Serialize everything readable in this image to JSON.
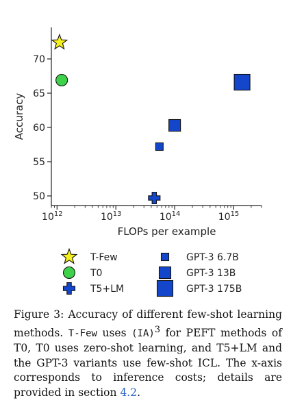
{
  "chart_data": {
    "type": "scatter",
    "title": "",
    "xlabel": "FLOPs per example",
    "ylabel": "Accuracy",
    "xscale": "log",
    "xlim": [
      800000000000,
      3000000000000000
    ],
    "ylim": [
      48.6,
      74.6
    ],
    "x_ticks": [
      {
        "value": 1000000000000,
        "base": "10",
        "exp": "12"
      },
      {
        "value": 10000000000000,
        "base": "10",
        "exp": "13"
      },
      {
        "value": 100000000000000,
        "base": "10",
        "exp": "14"
      },
      {
        "value": 1000000000000000,
        "base": "10",
        "exp": "15"
      }
    ],
    "y_ticks": [
      50,
      55,
      60,
      65,
      70
    ],
    "grid": false,
    "legend_position": "bottom",
    "series": [
      {
        "name": "T-Few",
        "marker": "star",
        "color": "#f5f01e",
        "x": 1100000000000,
        "y": 72.4
      },
      {
        "name": "T0",
        "marker": "circle",
        "color": "#3ed14a",
        "x": 1200000000000,
        "y": 66.9
      },
      {
        "name": "T5+LM",
        "marker": "plus",
        "color": "#1446cc",
        "x": 45000000000000,
        "y": 49.7
      },
      {
        "name": "GPT-3 6.7B",
        "marker": "square-small",
        "color": "#1446cc",
        "x": 55000000000000,
        "y": 57.2
      },
      {
        "name": "GPT-3 13B",
        "marker": "square-medium",
        "color": "#1446cc",
        "x": 100000000000000,
        "y": 60.3
      },
      {
        "name": "GPT-3 175B",
        "marker": "square-large",
        "color": "#1446cc",
        "x": 1400000000000000,
        "y": 66.6
      }
    ]
  },
  "caption": {
    "part1": "Figure 3: Accuracy of different few-shot learning methods. ",
    "tfew": "T-Few",
    "part2": " uses ",
    "ia": "(IA)",
    "sup": "3",
    "part3": " for PEFT methods of T0, T0 uses zero-shot learning, and T5+LM and the GPT-3 variants use few-shot ICL. The x-axis corresponds to inference costs; details are provided in section ",
    "ref": "4.2",
    "part4": "."
  }
}
